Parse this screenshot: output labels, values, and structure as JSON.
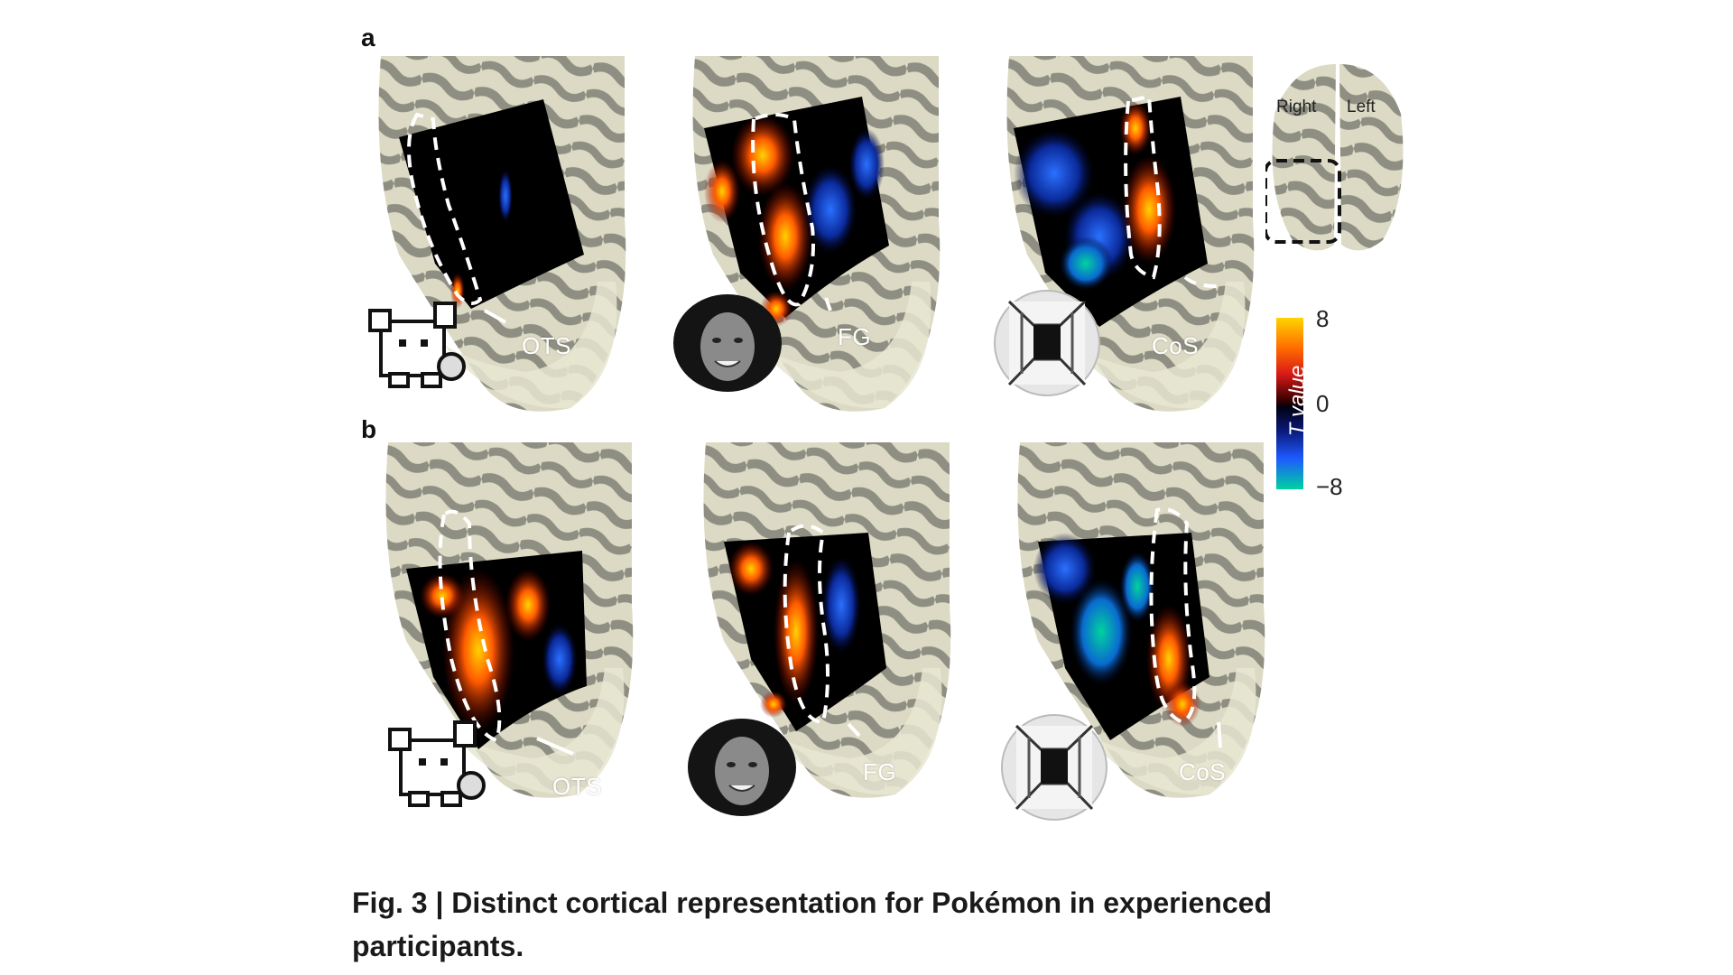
{
  "panels": [
    {
      "letter": "a",
      "rois": [
        "OTS",
        "FG",
        "CoS"
      ]
    },
    {
      "letter": "b",
      "rois": [
        "OTS",
        "FG",
        "CoS"
      ]
    }
  ],
  "inset": {
    "right_label": "Right",
    "left_label": "Left"
  },
  "colorbar": {
    "title": "T value",
    "max_label": "8",
    "mid_label": "0",
    "min_label": "−8"
  },
  "caption": {
    "fig": "Fig. 3",
    "separator": " | ",
    "text": "Distinct cortical representation for Pokémon in experienced participants."
  },
  "colors": {
    "positive": "#ff5a00",
    "negative": "#1e4cff",
    "cortex_light": "#e2e0c8",
    "cortex_dark": "#8e8e82"
  }
}
